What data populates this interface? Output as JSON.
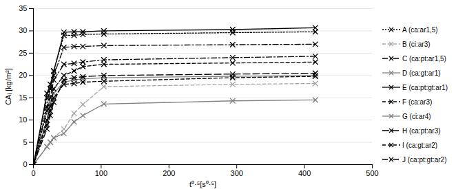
{
  "chart_data": {
    "type": "line",
    "x_label": "t⁰·⁵[s⁰·⁵]",
    "y_label": "CAᵢ [kg/m²]",
    "x": [
      0,
      20,
      25,
      30,
      45,
      60,
      73,
      104,
      294,
      416
    ],
    "xlim": [
      0,
      500
    ],
    "xticks": [
      0,
      100,
      200,
      300,
      400,
      500
    ],
    "ylim": [
      0,
      35
    ],
    "yticks": [
      0,
      5,
      10,
      15,
      20,
      25,
      30,
      35
    ],
    "grid": true,
    "legend": "right",
    "marker": "x",
    "series": [
      {
        "name": "A (ca:ar1,5)",
        "color": "#000000",
        "line_style": "dotted",
        "values": [
          0,
          13,
          17,
          21,
          29,
          29,
          29.2,
          29.3,
          29.6,
          29.8
        ]
      },
      {
        "name": "B (ci:ar3)",
        "color": "#a6a6a6",
        "line_style": "dashed",
        "values": [
          0,
          4,
          5,
          6,
          8,
          11.5,
          13.5,
          17.5,
          18,
          18.2
        ]
      },
      {
        "name": "C (ca:pt:ar1,5)",
        "color": "#000000",
        "line_style": "dashdot",
        "values": [
          0,
          12,
          15,
          19,
          22.5,
          22.7,
          23,
          23.5,
          24,
          24.3
        ]
      },
      {
        "name": "D (ca:gt:ar1)",
        "color": "#808080",
        "line_style": "solid",
        "values": [
          0,
          10,
          14,
          16,
          18.5,
          19,
          19.2,
          19.5,
          19.8,
          20
        ]
      },
      {
        "name": "E (ca:pt:gt:ar1)",
        "color": "#000000",
        "line_style": "solid",
        "values": [
          0,
          16,
          18,
          21,
          29.7,
          29.8,
          29.8,
          30,
          30.3,
          30.7
        ]
      },
      {
        "name": "F (ca:ar3)",
        "color": "#000000",
        "line_style": "dashed",
        "values": [
          0,
          9,
          12,
          15,
          18,
          18.2,
          18.5,
          18.7,
          19.5,
          19.8
        ]
      },
      {
        "name": "G (ci:ar4)",
        "color": "#808080",
        "line_style": "solid",
        "values": [
          0,
          4,
          5,
          6,
          7,
          9.6,
          11,
          13.6,
          14.3,
          14.5
        ]
      },
      {
        "name": "H (ca:pt:ar3)",
        "color": "#000000",
        "line_style": "longdash",
        "values": [
          0,
          8,
          11,
          14,
          19,
          19.5,
          19.7,
          20,
          20.3,
          20.5
        ]
      },
      {
        "name": "I (ca:gt:ar2)",
        "color": "#000000",
        "line_style": "dashed",
        "values": [
          0,
          10,
          13,
          17,
          20,
          21,
          22,
          22.5,
          22.8,
          23
        ]
      },
      {
        "name": "J (ca:pt:gt:ar2)",
        "color": "#000000",
        "line_style": "dashdot",
        "values": [
          0,
          15,
          17,
          20,
          26.3,
          26.5,
          26.5,
          26.7,
          26.9,
          27
        ]
      }
    ]
  }
}
